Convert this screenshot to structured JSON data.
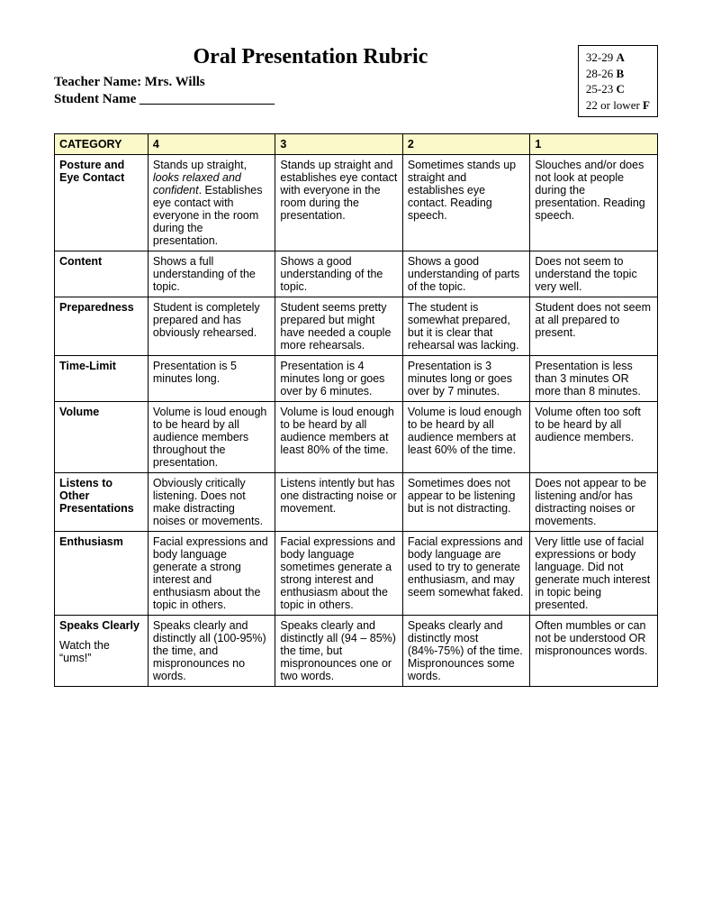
{
  "title": "Oral Presentation Rubric",
  "teacher_line": "Teacher Name: Mrs. Wills",
  "student_line": "Student Name ____________________",
  "grades": [
    {
      "range": "32-29",
      "letter": "A"
    },
    {
      "range": "28-26",
      "letter": "B"
    },
    {
      "range": "25-23",
      "letter": "C"
    },
    {
      "range": "22 or lower",
      "letter": "F"
    }
  ],
  "headers": [
    "CATEGORY",
    "4",
    "3",
    "2",
    "1"
  ],
  "rows": [
    {
      "category": "Posture and Eye Contact",
      "c4_pre": "Stands up straight, ",
      "c4_italic": "looks relaxed and confident",
      "c4_post": ". Establishes eye contact with everyone in the room during the presentation.",
      "c3": "Stands up straight and establishes eye contact with everyone in the room during the presentation.",
      "c2": "Sometimes stands up straight and establishes eye contact. Reading speech.",
      "c1": "Slouches and/or does not look at people during the presentation. Reading speech."
    },
    {
      "category": "Content",
      "c4": "Shows a full understanding of the topic.",
      "c3": "Shows a good understanding of the topic.",
      "c2": "Shows a good understanding of parts of the topic.",
      "c1": "Does not seem to understand the topic very well."
    },
    {
      "category": "Preparedness",
      "c4": "Student is completely prepared and has obviously rehearsed.",
      "c3": "Student seems pretty prepared but might have needed a couple more rehearsals.",
      "c2": "The student is somewhat prepared, but it is clear that rehearsal was lacking.",
      "c1": "Student does not seem at all prepared to present."
    },
    {
      "category": "Time-Limit",
      "c4": "Presentation is 5 minutes long.",
      "c3": "Presentation is 4 minutes long or goes over by 6 minutes.",
      "c2": "Presentation is 3 minutes long or goes over by 7 minutes.",
      "c1": "Presentation is less than 3 minutes OR more than 8 minutes."
    },
    {
      "category": "Volume",
      "c4": "Volume is loud enough to be heard by all audience members throughout the presentation.",
      "c3": "Volume is loud enough to be heard by all audience members at least 80% of the time.",
      "c2": "Volume is loud enough to be heard by all audience members at least 60% of the time.",
      "c1": "Volume often too soft to be heard by all audience members."
    },
    {
      "category": "Listens to Other Presentations",
      "c4": "Obviously critically listening. Does not make distracting noises or movements.",
      "c3": "Listens intently but has one distracting noise or movement.",
      "c2": "Sometimes does not appear to be listening but is not distracting.",
      "c1": "Does not appear to be listening and/or has distracting noises or movements."
    },
    {
      "category": "Enthusiasm",
      "c4": "Facial expressions and body language generate a strong interest and enthusiasm about the topic in others.",
      "c3": "Facial expressions and body language sometimes generate a strong interest and enthusiasm about the topic in others.",
      "c2": "Facial expressions and body language are used to try to generate enthusiasm, and may seem somewhat faked.",
      "c1": "Very little use of facial expressions or body language. Did not generate much interest in topic being presented."
    },
    {
      "category": "Speaks Clearly",
      "category_sub": "Watch the “ums!”",
      "c4": "Speaks clearly and distinctly all (100-95%) the time, and mispronounces no words.",
      "c3": "Speaks clearly and distinctly all (94 – 85%) the time, but mispronounces one or two words.",
      "c2": "Speaks clearly and distinctly most (84%-75%) of the time. Mispronounces some words.",
      "c1": "Often mumbles or can not be understood OR mispronounces words."
    }
  ]
}
